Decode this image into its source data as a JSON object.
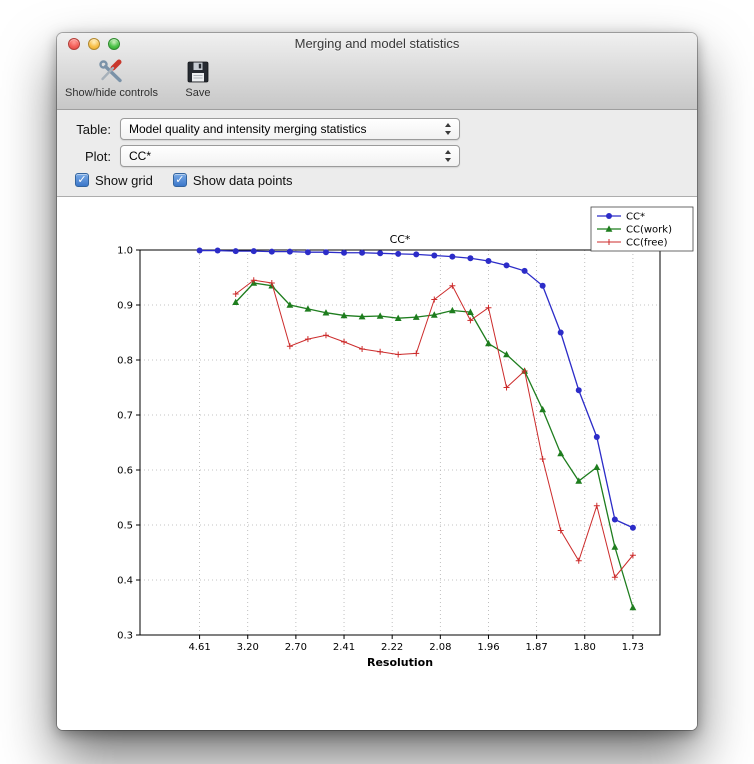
{
  "window": {
    "title": "Merging and model statistics"
  },
  "toolbar": {
    "items": [
      {
        "label": "Show/hide controls",
        "icon": "tools-icon"
      },
      {
        "label": "Save",
        "icon": "save-icon"
      }
    ]
  },
  "controls": {
    "table_label": "Table:",
    "table_value": "Model quality and intensity merging statistics",
    "plot_label": "Plot:",
    "plot_value": "CC*",
    "checkboxes": [
      {
        "label": "Show grid",
        "checked": true
      },
      {
        "label": "Show data points",
        "checked": true
      }
    ]
  },
  "chart_data": {
    "type": "line",
    "title": "CC*",
    "xlabel": "Resolution",
    "ylabel": "",
    "ylim": [
      0.3,
      1.0
    ],
    "yticks": [
      0.3,
      0.4,
      0.5,
      0.6,
      0.7,
      0.8,
      0.9,
      1.0
    ],
    "xtick_labels": [
      "4.61",
      "3.20",
      "2.70",
      "2.41",
      "2.22",
      "2.08",
      "1.96",
      "1.87",
      "1.80",
      "1.73"
    ],
    "x_range_bins": [
      -3.3,
      25.5
    ],
    "n_bins": 25,
    "grid": true,
    "show_data_points": true,
    "legend_position": "upper right",
    "series": [
      {
        "name": "CC*",
        "color": "#2c2cc8",
        "marker": "circle",
        "start_bin": 0,
        "values": [
          0.999,
          0.999,
          0.998,
          0.998,
          0.997,
          0.997,
          0.996,
          0.996,
          0.995,
          0.995,
          0.994,
          0.993,
          0.992,
          0.99,
          0.988,
          0.985,
          0.98,
          0.972,
          0.962,
          0.935,
          0.85,
          0.745,
          0.66,
          0.51,
          0.495
        ]
      },
      {
        "name": "CC(work)",
        "color": "#1e7d1e",
        "marker": "triangle",
        "start_bin": 2,
        "values": [
          0.905,
          0.94,
          0.935,
          0.9,
          0.893,
          0.886,
          0.881,
          0.879,
          0.88,
          0.876,
          0.878,
          0.882,
          0.89,
          0.887,
          0.83,
          0.81,
          0.78,
          0.71,
          0.63,
          0.58,
          0.605,
          0.46,
          0.35
        ]
      },
      {
        "name": "CC(free)",
        "color": "#cc2b2b",
        "marker": "plus",
        "start_bin": 2,
        "values": [
          0.92,
          0.945,
          0.94,
          0.825,
          0.838,
          0.845,
          0.833,
          0.82,
          0.815,
          0.81,
          0.812,
          0.91,
          0.935,
          0.872,
          0.895,
          0.75,
          0.78,
          0.62,
          0.49,
          0.435,
          0.535,
          0.405,
          0.445
        ]
      }
    ]
  }
}
